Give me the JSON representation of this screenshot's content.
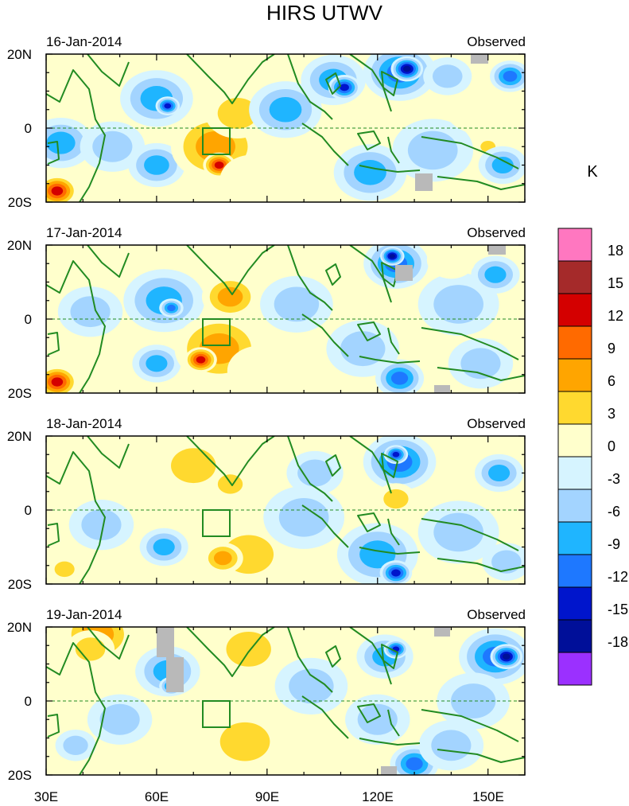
{
  "chart_data": {
    "type": "heatmap",
    "title": "HIRS UTWV",
    "variable_units": "K",
    "x_ticks": [
      "30E",
      "60E",
      "90E",
      "120E",
      "150E"
    ],
    "x_tick_values": [
      30,
      60,
      90,
      120,
      150
    ],
    "x_range": [
      30,
      160
    ],
    "y_ticks": [
      "20N",
      "0",
      "20S"
    ],
    "y_tick_values": [
      20,
      0,
      -20
    ],
    "y_range": [
      -20,
      20
    ],
    "box_region": {
      "lon": [
        73,
        80
      ],
      "lat": [
        -7,
        0
      ]
    },
    "colorbar": {
      "labels": [
        "18",
        "15",
        "12",
        "9",
        "6",
        "3",
        "0",
        "-3",
        "-6",
        "-9",
        "-12",
        "-15",
        "-18"
      ],
      "colors": [
        "#ff77c0",
        "#a52a2a",
        "#d40000",
        "#ff6a00",
        "#ffa500",
        "#ffd92f",
        "#ffffcc",
        "#d6f4ff",
        "#a3d4ff",
        "#1fb5ff",
        "#1e78ff",
        "#0015cc",
        "#000f99",
        "#9b30ff"
      ]
    },
    "panels": [
      {
        "date": "16-Jan-2014",
        "label": "Observed",
        "anomalies": [
          {
            "lon": 35,
            "lat": 12,
            "r": 6,
            "v": 3
          },
          {
            "lon": 48,
            "lat": 14,
            "r": 7,
            "v": 3
          },
          {
            "lon": 34,
            "lat": -4,
            "r": 8,
            "v": -8
          },
          {
            "lon": 33,
            "lat": -17,
            "r": 5,
            "v": 15
          },
          {
            "lon": 60,
            "lat": 8,
            "r": 9,
            "v": -8
          },
          {
            "lon": 63,
            "lat": 6,
            "r": 3,
            "v": -13
          },
          {
            "lon": 48,
            "lat": -5,
            "r": 8,
            "v": -6
          },
          {
            "lon": 60,
            "lat": -10,
            "r": 7,
            "v": -7
          },
          {
            "lon": 76,
            "lat": -5,
            "r": 11,
            "v": 8
          },
          {
            "lon": 77,
            "lat": -10,
            "r": 4,
            "v": 14
          },
          {
            "lon": 82,
            "lat": 4,
            "r": 8,
            "v": 6
          },
          {
            "lon": 86,
            "lat": -14,
            "r": 8,
            "v": 3
          },
          {
            "lon": 95,
            "lat": 5,
            "r": 9,
            "v": -7
          },
          {
            "lon": 108,
            "lat": 13,
            "r": 8,
            "v": -9
          },
          {
            "lon": 111,
            "lat": 11,
            "r": 4,
            "v": -13
          },
          {
            "lon": 126,
            "lat": 15,
            "r": 9,
            "v": -10
          },
          {
            "lon": 128,
            "lat": 16,
            "r": 4,
            "v": -17
          },
          {
            "lon": 118,
            "lat": -12,
            "r": 9,
            "v": -8
          },
          {
            "lon": 135,
            "lat": -6,
            "r": 10,
            "v": -5
          },
          {
            "lon": 148,
            "lat": 6,
            "r": 9,
            "v": 3
          },
          {
            "lon": 150,
            "lat": -5,
            "r": 3,
            "v": 6
          },
          {
            "lon": 154,
            "lat": -10,
            "r": 6,
            "v": -9
          },
          {
            "lon": 139,
            "lat": 14,
            "r": 6,
            "v": -4
          },
          {
            "lon": 156,
            "lat": 14,
            "r": 5,
            "v": -12
          }
        ]
      },
      {
        "date": "17-Jan-2014",
        "label": "Observed",
        "anomalies": [
          {
            "lon": 36,
            "lat": 12,
            "r": 7,
            "v": 3
          },
          {
            "lon": 52,
            "lat": 15,
            "r": 7,
            "v": 3
          },
          {
            "lon": 42,
            "lat": 2,
            "r": 8,
            "v": -6
          },
          {
            "lon": 33,
            "lat": -17,
            "r": 5,
            "v": 14
          },
          {
            "lon": 62,
            "lat": 5,
            "r": 10,
            "v": -7
          },
          {
            "lon": 64,
            "lat": 3,
            "r": 3,
            "v": -11
          },
          {
            "lon": 60,
            "lat": -12,
            "r": 6,
            "v": -7
          },
          {
            "lon": 80,
            "lat": 6,
            "r": 7,
            "v": 7
          },
          {
            "lon": 77,
            "lat": -8,
            "r": 11,
            "v": 8
          },
          {
            "lon": 72,
            "lat": -11,
            "r": 4,
            "v": 14
          },
          {
            "lon": 88,
            "lat": -14,
            "r": 8,
            "v": 3
          },
          {
            "lon": 98,
            "lat": 4,
            "r": 9,
            "v": -6
          },
          {
            "lon": 125,
            "lat": 15,
            "r": 8,
            "v": -11
          },
          {
            "lon": 124,
            "lat": 17,
            "r": 3,
            "v": -17
          },
          {
            "lon": 116,
            "lat": -8,
            "r": 9,
            "v": -6
          },
          {
            "lon": 126,
            "lat": -16,
            "r": 6,
            "v": -10
          },
          {
            "lon": 142,
            "lat": 4,
            "r": 10,
            "v": -5
          },
          {
            "lon": 152,
            "lat": 12,
            "r": 6,
            "v": -8
          },
          {
            "lon": 148,
            "lat": -12,
            "r": 8,
            "v": -4
          },
          {
            "lon": 140,
            "lat": 16,
            "r": 6,
            "v": 3
          }
        ]
      },
      {
        "date": "18-Jan-2014",
        "label": "Observed",
        "anomalies": [
          {
            "lon": 40,
            "lat": 12,
            "r": 7,
            "v": 3
          },
          {
            "lon": 70,
            "lat": 12,
            "r": 9,
            "v": 4
          },
          {
            "lon": 80,
            "lat": 7,
            "r": 5,
            "v": 6
          },
          {
            "lon": 45,
            "lat": -4,
            "r": 8,
            "v": -6
          },
          {
            "lon": 62,
            "lat": -10,
            "r": 6,
            "v": -8
          },
          {
            "lon": 85,
            "lat": -12,
            "r": 10,
            "v": 6
          },
          {
            "lon": 78,
            "lat": -13,
            "r": 5,
            "v": 7
          },
          {
            "lon": 100,
            "lat": -2,
            "r": 10,
            "v": -6
          },
          {
            "lon": 103,
            "lat": 10,
            "r": 7,
            "v": -5
          },
          {
            "lon": 126,
            "lat": 13,
            "r": 9,
            "v": -10
          },
          {
            "lon": 125,
            "lat": 15,
            "r": 3,
            "v": -14
          },
          {
            "lon": 125,
            "lat": 3,
            "r": 5,
            "v": 6
          },
          {
            "lon": 120,
            "lat": -12,
            "r": 10,
            "v": -8
          },
          {
            "lon": 125,
            "lat": -17,
            "r": 4,
            "v": -13
          },
          {
            "lon": 142,
            "lat": -6,
            "r": 10,
            "v": -6
          },
          {
            "lon": 153,
            "lat": 10,
            "r": 6,
            "v": -9
          },
          {
            "lon": 155,
            "lat": -14,
            "r": 6,
            "v": -5
          },
          {
            "lon": 35,
            "lat": -16,
            "r": 4,
            "v": 4
          }
        ]
      },
      {
        "date": "19-Jan-2014",
        "label": "Observed",
        "anomalies": [
          {
            "lon": 44,
            "lat": 18,
            "r": 9,
            "v": 8
          },
          {
            "lon": 42,
            "lat": 14,
            "r": 6,
            "v": 5
          },
          {
            "lon": 85,
            "lat": 14,
            "r": 9,
            "v": 4
          },
          {
            "lon": 63,
            "lat": 8,
            "r": 8,
            "v": -8
          },
          {
            "lon": 64,
            "lat": 4,
            "r": 3,
            "v": -11
          },
          {
            "lon": 50,
            "lat": -5,
            "r": 8,
            "v": -6
          },
          {
            "lon": 38,
            "lat": -12,
            "r": 5,
            "v": -5
          },
          {
            "lon": 84,
            "lat": -11,
            "r": 10,
            "v": 6
          },
          {
            "lon": 102,
            "lat": -12,
            "r": 8,
            "v": 3
          },
          {
            "lon": 102,
            "lat": 4,
            "r": 9,
            "v": -5
          },
          {
            "lon": 122,
            "lat": 12,
            "r": 7,
            "v": -9
          },
          {
            "lon": 125,
            "lat": 14,
            "r": 3,
            "v": -13
          },
          {
            "lon": 120,
            "lat": -5,
            "r": 8,
            "v": -6
          },
          {
            "lon": 130,
            "lat": -17,
            "r": 6,
            "v": -12
          },
          {
            "lon": 152,
            "lat": 12,
            "r": 9,
            "v": -12
          },
          {
            "lon": 155,
            "lat": 12,
            "r": 4,
            "v": -17
          },
          {
            "lon": 146,
            "lat": 0,
            "r": 9,
            "v": -6
          },
          {
            "lon": 140,
            "lat": -12,
            "r": 8,
            "v": -4
          }
        ]
      }
    ]
  }
}
